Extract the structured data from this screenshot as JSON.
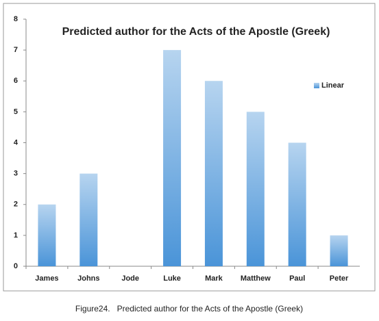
{
  "chart_data": {
    "type": "bar",
    "title": "Predicted author for the Acts of the Apostle (Greek)",
    "categories": [
      "James",
      "Johns",
      "Jode",
      "Luke",
      "Mark",
      "Matthew",
      "Paul",
      "Peter"
    ],
    "series": [
      {
        "name": "Linear",
        "color": "#4a94d8",
        "values": [
          2,
          3,
          0,
          7,
          6,
          5,
          4,
          1
        ]
      }
    ],
    "ylim": [
      0,
      8
    ],
    "yticks": [
      0,
      1,
      2,
      3,
      4,
      5,
      6,
      7,
      8
    ],
    "grid": false,
    "legend": "right",
    "caption": "Figure24.   Predicted author for the Acts of the Apostle (Greek)"
  }
}
